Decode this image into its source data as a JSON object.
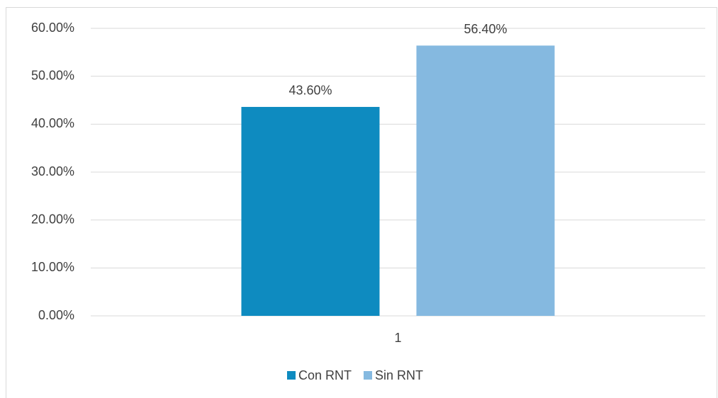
{
  "chart_data": {
    "type": "bar",
    "categories": [
      "1"
    ],
    "series": [
      {
        "name": "Con RNT",
        "color": "#0e8bc0",
        "values": [
          43.6
        ],
        "value_labels": [
          "43.60%"
        ]
      },
      {
        "name": "Sin RNT",
        "color": "#85b9e0",
        "values": [
          56.4
        ],
        "value_labels": [
          "56.40%"
        ]
      }
    ],
    "ylim": [
      0,
      60
    ],
    "yticks": [
      {
        "value": 0,
        "label": "0.00%"
      },
      {
        "value": 10,
        "label": "10.00%"
      },
      {
        "value": 20,
        "label": "20.00%"
      },
      {
        "value": 30,
        "label": "30.00%"
      },
      {
        "value": 40,
        "label": "40.00%"
      },
      {
        "value": 50,
        "label": "50.00%"
      },
      {
        "value": 60,
        "label": "60.00%"
      }
    ],
    "grid": true,
    "legend": "bottom"
  }
}
